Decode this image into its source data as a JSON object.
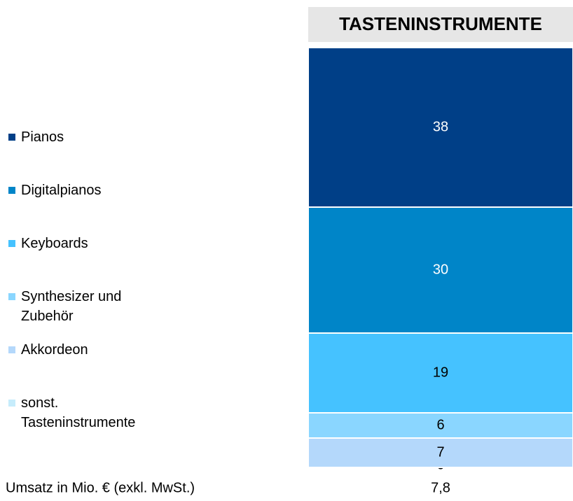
{
  "chart_data": {
    "type": "stacked_bar",
    "title": "TASTENINSTRUMENTE",
    "x_label": "Umsatz in Mio. € (exkl. MwSt.)",
    "total_label": "7,8",
    "ylim": [
      0,
      100
    ],
    "series": [
      {
        "name": "Pianos",
        "color": "#003f87",
        "values": [
          38
        ]
      },
      {
        "name": "Digitalpianos",
        "color": "#0085c8",
        "values": [
          30
        ]
      },
      {
        "name": "Keyboards",
        "color": "#45c2ff",
        "values": [
          19
        ]
      },
      {
        "name": "Synthesizer und Zubehör",
        "color": "#8ad6ff",
        "values": [
          6
        ]
      },
      {
        "name": "Akkordeon",
        "color": "#b4d8fb",
        "values": [
          7
        ]
      },
      {
        "name": "sonst. Tasteninstrumente",
        "color": "#c6ecfb",
        "values": [
          0
        ]
      }
    ]
  }
}
